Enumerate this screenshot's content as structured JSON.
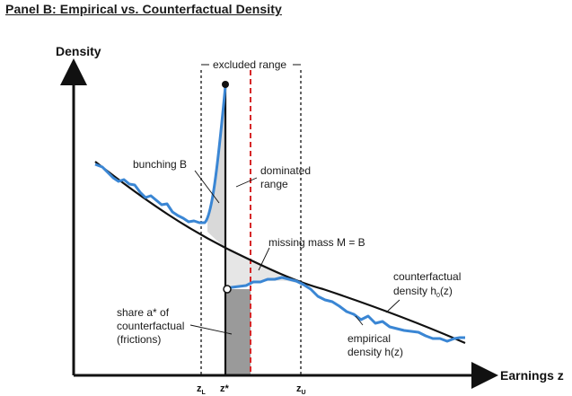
{
  "panel_title": "Panel B: Empirical vs. Counterfactual Density",
  "axes": {
    "y_label": "Density",
    "x_label": "Earnings z"
  },
  "ticks": {
    "z_lower": {
      "main": "z",
      "sub": "L"
    },
    "z_star": {
      "main": "z*",
      "sub": ""
    },
    "z_upper": {
      "main": "z",
      "sub": "U"
    }
  },
  "annotations": {
    "excluded_range": "excluded range",
    "bunching": "bunching B",
    "dominated_line1": "dominated",
    "dominated_line2": "range",
    "missing_mass": "missing mass M = B",
    "counterfactual_line1": "counterfactual",
    "counterfactual_line2": "density h",
    "counterfactual_sub": "0",
    "counterfactual_arg": "(z)",
    "share_line1": "share a* of",
    "share_line2": "counterfactual",
    "share_line3": "(frictions)",
    "empirical_line1": "empirical",
    "empirical_line2": "density h(z)"
  },
  "colors": {
    "empirical": "#3a86d4",
    "counterfactual": "#111111",
    "dominated_boundary": "#d62728",
    "bunching_fill": "#d9d9d9",
    "frictions_fill": "#9a9a9a"
  }
}
